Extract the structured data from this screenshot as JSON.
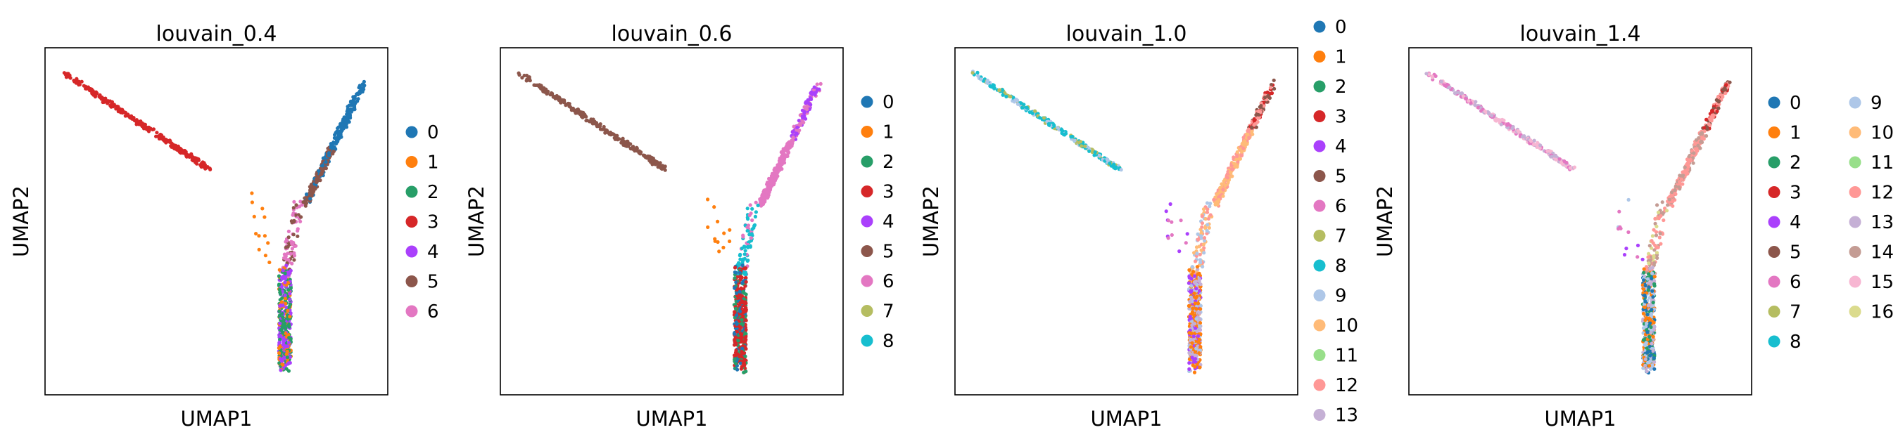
{
  "chart_data": [
    {
      "type": "scatter",
      "title": "louvain_0.4",
      "xlabel": "UMAP1",
      "ylabel": "UMAP2",
      "xticks": false,
      "yticks": false,
      "legend_location": "right",
      "legend_columns": 1,
      "categories": [
        "0",
        "1",
        "2",
        "3",
        "4",
        "5",
        "6"
      ],
      "colors": [
        "#1f77b4",
        "#ff7f0e",
        "#279e68",
        "#d62728",
        "#aa40fc",
        "#8c564b",
        "#e377c2"
      ]
    },
    {
      "type": "scatter",
      "title": "louvain_0.6",
      "xlabel": "UMAP1",
      "ylabel": "UMAP2",
      "xticks": false,
      "yticks": false,
      "legend_location": "right",
      "legend_columns": 1,
      "categories": [
        "0",
        "1",
        "2",
        "3",
        "4",
        "5",
        "6",
        "7",
        "8"
      ],
      "colors": [
        "#1f77b4",
        "#ff7f0e",
        "#279e68",
        "#d62728",
        "#aa40fc",
        "#8c564b",
        "#e377c2",
        "#b5bd61",
        "#17becf"
      ]
    },
    {
      "type": "scatter",
      "title": "louvain_1.0",
      "xlabel": "UMAP1",
      "ylabel": "UMAP2",
      "xticks": false,
      "yticks": false,
      "legend_location": "right",
      "legend_columns": 1,
      "categories": [
        "0",
        "1",
        "2",
        "3",
        "4",
        "5",
        "6",
        "7",
        "8",
        "9",
        "10",
        "11",
        "12",
        "13"
      ],
      "colors": [
        "#1f77b4",
        "#ff7f0e",
        "#279e68",
        "#d62728",
        "#aa40fc",
        "#8c564b",
        "#e377c2",
        "#b5bd61",
        "#17becf",
        "#aec7e8",
        "#ffbb78",
        "#98df8a",
        "#ff9896",
        "#c5b0d5"
      ]
    },
    {
      "type": "scatter",
      "title": "louvain_1.4",
      "xlabel": "UMAP1",
      "ylabel": "UMAP2",
      "xticks": false,
      "yticks": false,
      "legend_location": "right",
      "legend_columns": 2,
      "categories": [
        "0",
        "1",
        "2",
        "3",
        "4",
        "5",
        "6",
        "7",
        "8",
        "9",
        "10",
        "11",
        "12",
        "13",
        "14",
        "15",
        "16"
      ],
      "colors": [
        "#1f77b4",
        "#ff7f0e",
        "#279e68",
        "#d62728",
        "#aa40fc",
        "#8c564b",
        "#e377c2",
        "#b5bd61",
        "#17becf",
        "#aec7e8",
        "#ffbb78",
        "#98df8a",
        "#ff9896",
        "#c5b0d5",
        "#c49c94",
        "#f7b6d2",
        "#dbdb8d"
      ]
    }
  ]
}
